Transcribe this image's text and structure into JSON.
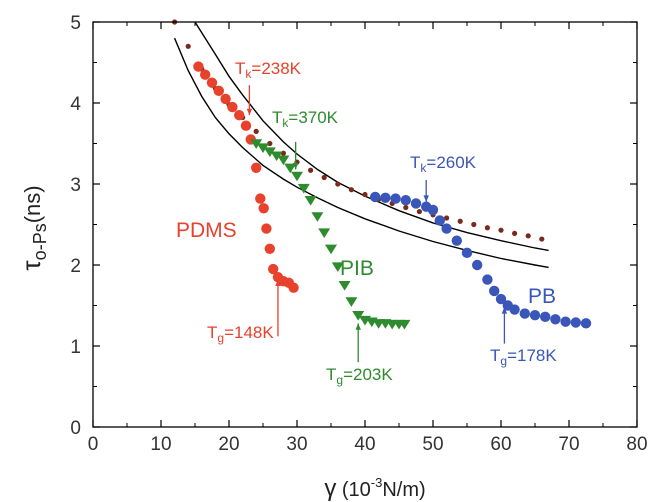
{
  "chart_data": {
    "type": "scatter",
    "xlabel_prefix": "γ",
    "xlabel_unit_open": " (10",
    "xlabel_unit_exp": "-3",
    "xlabel_unit_close": "N/m)",
    "ylabel_prefix": "τ",
    "ylabel_sub": "o-Ps",
    "ylabel_unit": "(ns)",
    "xlim": [
      0,
      80
    ],
    "ylim": [
      0,
      5
    ],
    "x_ticks": [
      "0",
      "10",
      "20",
      "30",
      "40",
      "50",
      "60",
      "70",
      "80"
    ],
    "y_ticks": [
      "0",
      "1",
      "2",
      "3",
      "4",
      "5"
    ],
    "grid": false,
    "colors": {
      "PDMS": "#e8412c",
      "PIB": "#2e8b2e",
      "PB": "#3a56b8",
      "dotted": "#7a2a1a",
      "curves": "#000000"
    },
    "series": [
      {
        "name": "PDMS",
        "marker": "circle",
        "points": [
          [
            15.5,
            4.45
          ],
          [
            16.5,
            4.35
          ],
          [
            17.5,
            4.25
          ],
          [
            18.5,
            4.15
          ],
          [
            19.5,
            4.05
          ],
          [
            20.5,
            3.95
          ],
          [
            21.5,
            3.85
          ],
          [
            22.5,
            3.72
          ],
          [
            23.2,
            3.55
          ],
          [
            24.0,
            3.2
          ],
          [
            24.6,
            2.82
          ],
          [
            25.1,
            2.7
          ],
          [
            25.5,
            2.45
          ],
          [
            26.0,
            2.2
          ],
          [
            26.5,
            1.95
          ],
          [
            27.2,
            1.85
          ],
          [
            28.0,
            1.8
          ],
          [
            28.8,
            1.78
          ],
          [
            29.5,
            1.72
          ]
        ]
      },
      {
        "name": "PIB",
        "marker": "triangle-down",
        "points": [
          [
            24.0,
            3.5
          ],
          [
            25.0,
            3.45
          ],
          [
            26.0,
            3.4
          ],
          [
            27.0,
            3.35
          ],
          [
            28.0,
            3.3
          ],
          [
            29.0,
            3.2
          ],
          [
            30.0,
            3.1
          ],
          [
            31.0,
            2.95
          ],
          [
            32.0,
            2.8
          ],
          [
            33.0,
            2.6
          ],
          [
            34.0,
            2.4
          ],
          [
            35.0,
            2.2
          ],
          [
            36.0,
            1.98
          ],
          [
            37.0,
            1.75
          ],
          [
            38.0,
            1.55
          ],
          [
            39.0,
            1.38
          ],
          [
            40.0,
            1.32
          ],
          [
            41.0,
            1.3
          ],
          [
            42.0,
            1.28
          ],
          [
            43.0,
            1.28
          ],
          [
            44.0,
            1.27
          ],
          [
            45.0,
            1.27
          ],
          [
            45.8,
            1.27
          ]
        ]
      },
      {
        "name": "PB",
        "marker": "circle",
        "points": [
          [
            41.5,
            2.84
          ],
          [
            43.0,
            2.83
          ],
          [
            44.5,
            2.82
          ],
          [
            46.0,
            2.8
          ],
          [
            47.5,
            2.76
          ],
          [
            49.0,
            2.72
          ],
          [
            50.0,
            2.68
          ],
          [
            51.0,
            2.55
          ],
          [
            52.0,
            2.45
          ],
          [
            53.5,
            2.3
          ],
          [
            55.0,
            2.15
          ],
          [
            56.5,
            2.0
          ],
          [
            58.0,
            1.82
          ],
          [
            59.0,
            1.68
          ],
          [
            60.0,
            1.58
          ],
          [
            61.0,
            1.5
          ],
          [
            62.0,
            1.45
          ],
          [
            63.5,
            1.4
          ],
          [
            65.0,
            1.38
          ],
          [
            66.5,
            1.36
          ],
          [
            68.0,
            1.33
          ],
          [
            69.5,
            1.3
          ],
          [
            71.0,
            1.29
          ],
          [
            72.5,
            1.28
          ]
        ]
      }
    ],
    "dotted_series": {
      "points": [
        [
          12.0,
          5.0
        ],
        [
          14.0,
          4.7
        ],
        [
          16.0,
          4.42
        ],
        [
          18.0,
          4.18
        ],
        [
          20.0,
          3.98
        ],
        [
          22.0,
          3.82
        ],
        [
          24.0,
          3.65
        ],
        [
          26.0,
          3.5
        ],
        [
          28.0,
          3.38
        ],
        [
          30.0,
          3.27
        ],
        [
          32.0,
          3.17
        ],
        [
          34.0,
          3.08
        ],
        [
          36.0,
          3.0
        ],
        [
          38.0,
          2.93
        ],
        [
          40.0,
          2.87
        ],
        [
          42.0,
          2.81
        ],
        [
          44.0,
          2.76
        ],
        [
          46.0,
          2.71
        ],
        [
          48.0,
          2.66
        ],
        [
          50.0,
          2.62
        ],
        [
          52.0,
          2.58
        ],
        [
          54.0,
          2.54
        ],
        [
          56.0,
          2.5
        ],
        [
          58.0,
          2.46
        ],
        [
          60.0,
          2.43
        ],
        [
          62.0,
          2.39
        ],
        [
          64.0,
          2.36
        ],
        [
          66.0,
          2.32
        ]
      ]
    },
    "curves": [
      {
        "points": [
          [
            15.0,
            5.0
          ],
          [
            18.0,
            4.6
          ],
          [
            20.0,
            4.33
          ],
          [
            22.0,
            4.1
          ],
          [
            25.0,
            3.78
          ],
          [
            28.0,
            3.52
          ],
          [
            30.0,
            3.37
          ],
          [
            33.0,
            3.18
          ],
          [
            36.0,
            3.02
          ],
          [
            40.0,
            2.85
          ],
          [
            45.0,
            2.67
          ],
          [
            50.0,
            2.52
          ],
          [
            55.0,
            2.4
          ],
          [
            60.0,
            2.3
          ],
          [
            65.0,
            2.21
          ],
          [
            67.0,
            2.18
          ]
        ]
      },
      {
        "points": [
          [
            12.0,
            4.8
          ],
          [
            14.0,
            4.4
          ],
          [
            16.0,
            4.08
          ],
          [
            18.0,
            3.82
          ],
          [
            20.0,
            3.62
          ],
          [
            22.0,
            3.45
          ],
          [
            25.0,
            3.23
          ],
          [
            28.0,
            3.06
          ],
          [
            30.0,
            2.96
          ],
          [
            33.0,
            2.83
          ],
          [
            36.0,
            2.71
          ],
          [
            40.0,
            2.57
          ],
          [
            45.0,
            2.42
          ],
          [
            50.0,
            2.29
          ],
          [
            55.0,
            2.18
          ],
          [
            60.0,
            2.08
          ],
          [
            65.0,
            2.0
          ],
          [
            67.0,
            1.97
          ]
        ]
      }
    ],
    "annotations": {
      "pdms_label": "PDMS",
      "pib_label": "PIB",
      "pb_label": "PB",
      "pdms_tk": {
        "T": "T",
        "sub": "k",
        "rest": "=238K"
      },
      "pib_tk": {
        "T": "T",
        "sub": "k",
        "rest": "=370K"
      },
      "pb_tk": {
        "T": "T",
        "sub": "k",
        "rest": "=260K"
      },
      "pdms_tg": {
        "T": "T",
        "sub": "g",
        "rest": "=148K"
      },
      "pib_tg": {
        "T": "T",
        "sub": "g",
        "rest": "=203K"
      },
      "pb_tg": {
        "T": "T",
        "sub": "g",
        "rest": "=178K"
      }
    }
  }
}
